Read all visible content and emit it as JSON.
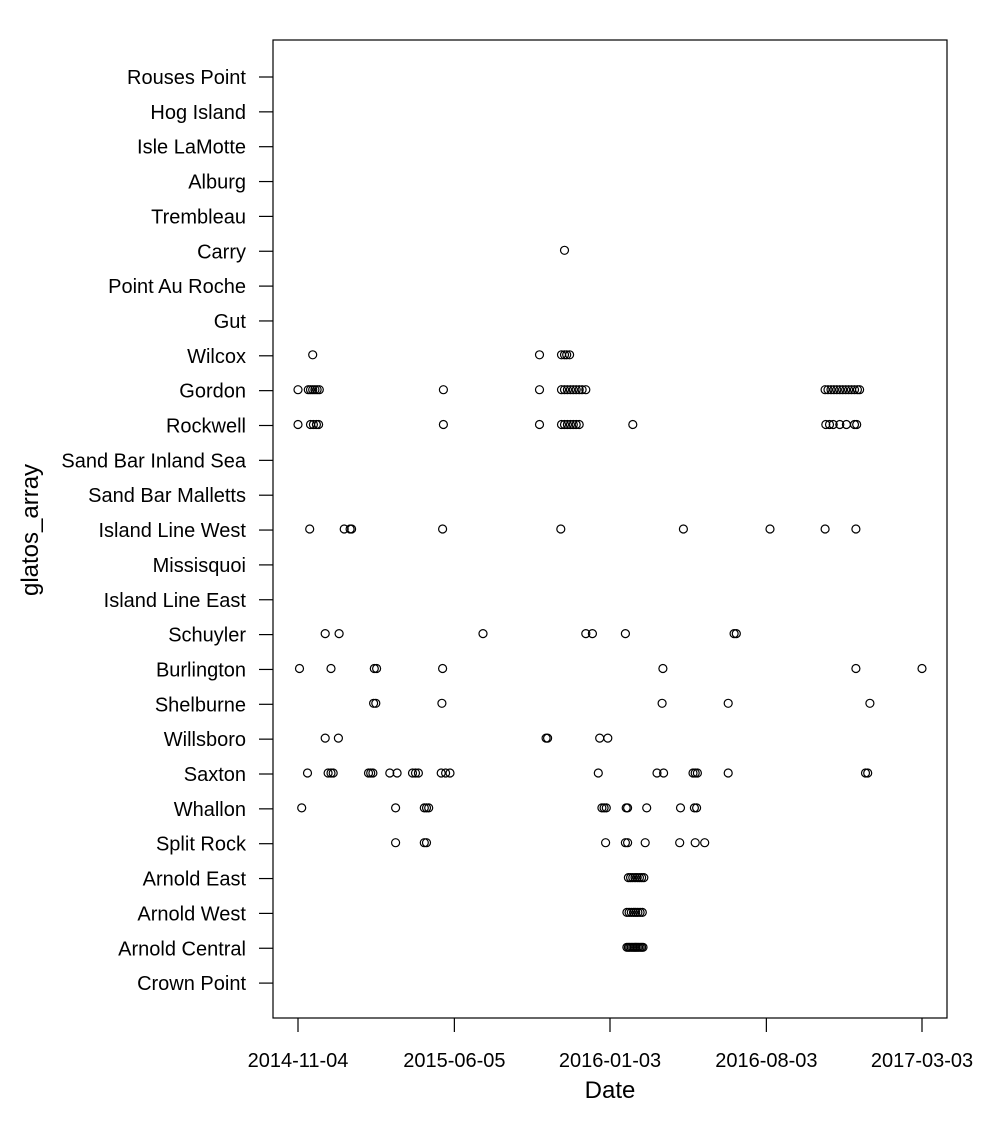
{
  "chart_data": {
    "type": "scatter",
    "title": "",
    "xlabel": "Date",
    "ylabel": "glatos_array",
    "x_ticks": [
      "2014-11-04",
      "2015-06-05",
      "2016-01-03",
      "2016-08-03",
      "2017-03-03"
    ],
    "xlim": [
      "2014-10-21",
      "2017-03-20"
    ],
    "categories": [
      "Rouses Point",
      "Hog Island",
      "Isle LaMotte",
      "Alburg",
      "Trembleau",
      "Carry",
      "Point Au Roche",
      "Gut",
      "Wilcox",
      "Gordon",
      "Rockwell",
      "Sand Bar Inland Sea",
      "Sand Bar Malletts",
      "Island Line West",
      "Missisquoi",
      "Island Line East",
      "Schuyler",
      "Burlington",
      "Shelburne",
      "Willsboro",
      "Saxton",
      "Whallon",
      "Split Rock",
      "Arnold East",
      "Arnold West",
      "Arnold Central",
      "Crown Point"
    ],
    "grid": false,
    "legend": "none",
    "marker": "open-circle",
    "points": [
      {
        "y": "Carry",
        "x": [
          "2015-11-02"
        ]
      },
      {
        "y": "Wilcox",
        "x": [
          "2014-11-24",
          "2015-09-29",
          "2015-10-29",
          "2015-11-02",
          "2015-11-05",
          "2015-11-09"
        ]
      },
      {
        "y": "Gordon",
        "x": [
          "2014-11-04",
          "2014-11-18",
          "2014-11-21",
          "2014-11-24",
          "2014-11-27",
          "2014-11-30",
          "2014-12-03",
          "2015-05-21",
          "2015-09-29",
          "2015-10-29",
          "2015-11-02",
          "2015-11-06",
          "2015-11-10",
          "2015-11-14",
          "2015-11-18",
          "2015-11-22",
          "2015-11-26",
          "2015-12-01",
          "2016-10-22",
          "2016-10-26",
          "2016-10-30",
          "2016-11-03",
          "2016-11-07",
          "2016-11-11",
          "2016-11-15",
          "2016-11-19",
          "2016-11-23",
          "2016-11-27",
          "2016-12-01",
          "2016-12-05",
          "2016-12-08"
        ]
      },
      {
        "y": "Rockwell",
        "x": [
          "2014-11-04",
          "2014-11-21",
          "2014-11-25",
          "2014-11-29",
          "2014-12-02",
          "2015-05-21",
          "2015-09-29",
          "2015-10-29",
          "2015-11-02",
          "2015-11-06",
          "2015-11-10",
          "2015-11-14",
          "2015-11-18",
          "2015-11-22",
          "2016-02-03",
          "2016-10-23",
          "2016-10-28",
          "2016-11-02",
          "2016-11-11",
          "2016-11-20",
          "2016-12-01",
          "2016-12-04"
        ]
      },
      {
        "y": "Island Line West",
        "x": [
          "2014-11-20",
          "2015-01-06",
          "2015-01-14",
          "2015-01-16",
          "2015-05-20",
          "2015-10-28",
          "2016-04-12",
          "2016-08-08",
          "2016-10-22",
          "2016-12-03"
        ]
      },
      {
        "y": "Schuyler",
        "x": [
          "2014-12-11",
          "2014-12-30",
          "2015-07-14",
          "2015-12-01",
          "2015-12-10",
          "2016-01-24",
          "2016-06-20",
          "2016-06-23"
        ]
      },
      {
        "y": "Burlington",
        "x": [
          "2014-11-06",
          "2014-12-19",
          "2015-02-16",
          "2015-02-19",
          "2015-05-20",
          "2016-03-15",
          "2016-12-03",
          "2017-03-03"
        ]
      },
      {
        "y": "Shelburne",
        "x": [
          "2015-02-15",
          "2015-02-18",
          "2015-05-19",
          "2016-03-14",
          "2016-06-12",
          "2016-12-22"
        ]
      },
      {
        "y": "Willsboro",
        "x": [
          "2014-12-11",
          "2014-12-29",
          "2015-10-08",
          "2015-10-10",
          "2015-12-20",
          "2015-12-31"
        ]
      },
      {
        "y": "Saxton",
        "x": [
          "2014-11-17",
          "2014-12-15",
          "2014-12-19",
          "2014-12-22",
          "2015-02-08",
          "2015-02-11",
          "2015-02-14",
          "2015-03-09",
          "2015-03-19",
          "2015-04-09",
          "2015-04-13",
          "2015-04-17",
          "2015-05-18",
          "2015-05-24",
          "2015-05-30",
          "2015-12-18",
          "2016-03-07",
          "2016-03-16",
          "2016-04-25",
          "2016-04-28",
          "2016-05-01",
          "2016-06-12",
          "2016-12-16",
          "2016-12-19"
        ]
      },
      {
        "y": "Whallon",
        "x": [
          "2014-11-09",
          "2015-03-17",
          "2015-04-25",
          "2015-04-28",
          "2015-05-01",
          "2015-12-23",
          "2015-12-26",
          "2015-12-29",
          "2016-01-25",
          "2016-01-27",
          "2016-02-22",
          "2016-04-08",
          "2016-04-27",
          "2016-04-30"
        ]
      },
      {
        "y": "Split Rock",
        "x": [
          "2015-03-17",
          "2015-04-25",
          "2015-04-28",
          "2015-12-28",
          "2016-01-24",
          "2016-01-27",
          "2016-02-20",
          "2016-04-07",
          "2016-04-28",
          "2016-05-11"
        ]
      },
      {
        "y": "Arnold East",
        "x": [
          "2016-01-28",
          "2016-01-31",
          "2016-02-03",
          "2016-02-06",
          "2016-02-09",
          "2016-02-12",
          "2016-02-15",
          "2016-02-18"
        ]
      },
      {
        "y": "Arnold West",
        "x": [
          "2016-01-26",
          "2016-01-29",
          "2016-02-01",
          "2016-02-04",
          "2016-02-07",
          "2016-02-10",
          "2016-02-13",
          "2016-02-16"
        ]
      },
      {
        "y": "Arnold Central",
        "x": [
          "2016-01-26",
          "2016-01-28",
          "2016-01-30",
          "2016-02-01",
          "2016-02-03",
          "2016-02-05",
          "2016-02-07",
          "2016-02-09",
          "2016-02-11",
          "2016-02-13",
          "2016-02-15",
          "2016-02-17"
        ]
      }
    ]
  }
}
